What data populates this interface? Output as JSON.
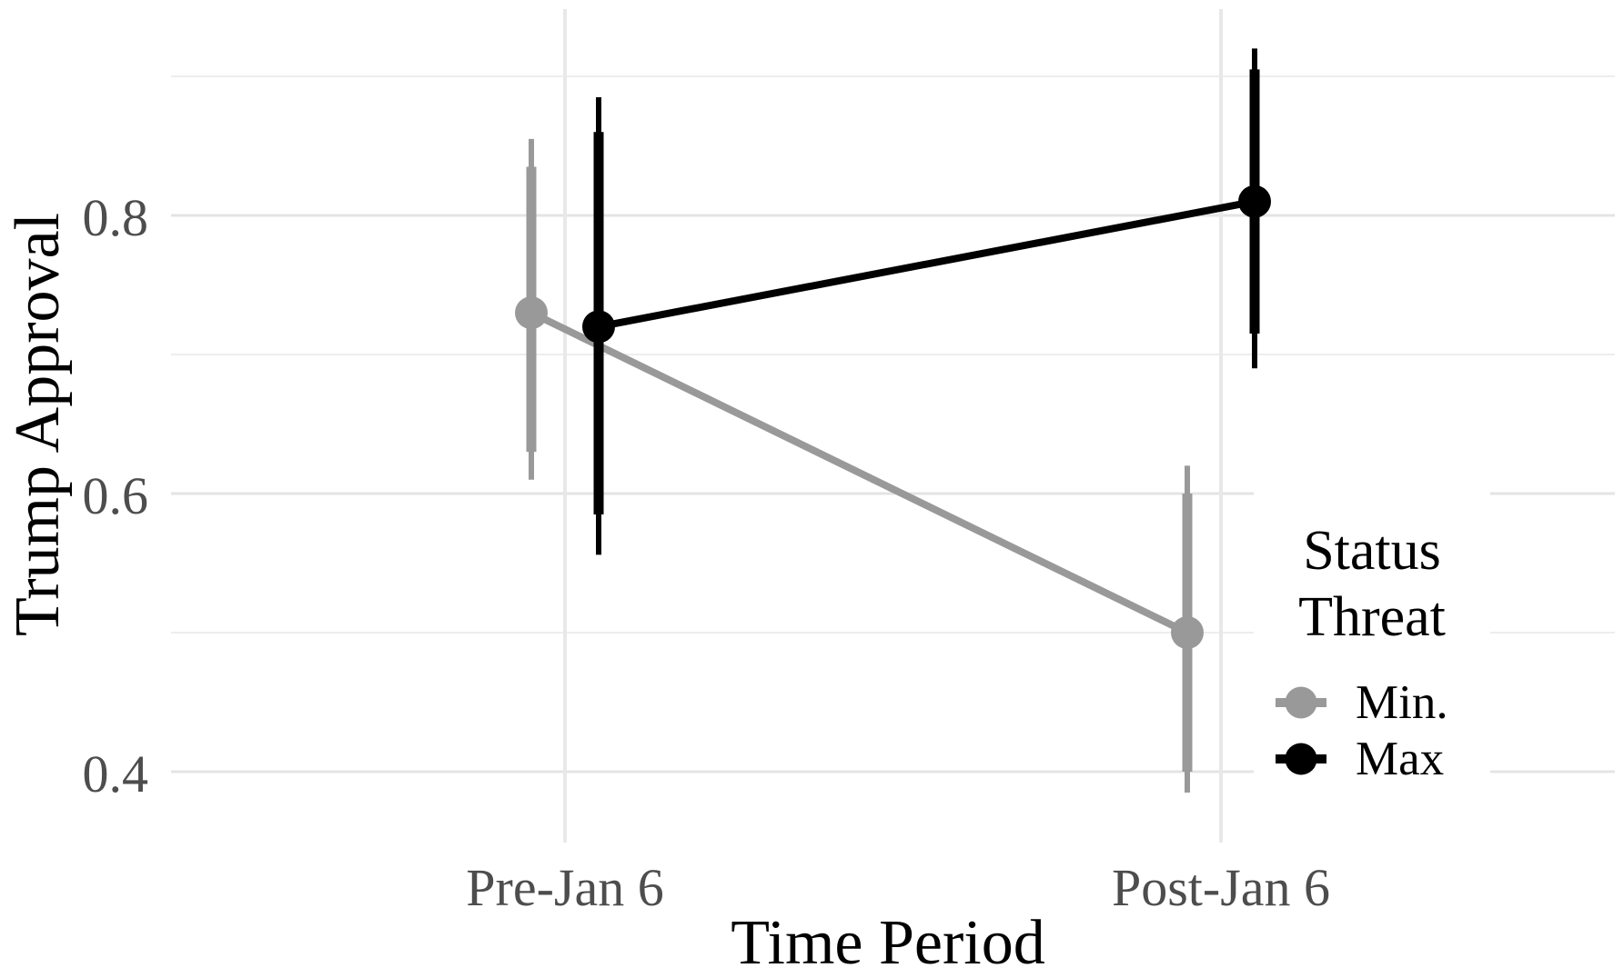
{
  "axes": {
    "y_title": "Trump Approval",
    "x_title": "Time Period",
    "y_tick_labels": [
      "0.8",
      "0.6",
      "0.4"
    ],
    "x_tick_labels": [
      "Pre-Jan 6",
      "Post-Jan 6"
    ],
    "tick_label_color": "#4d4d4d",
    "gridline_color": "#e4e4e4"
  },
  "legend": {
    "title_lines": [
      "Status",
      "Threat"
    ],
    "items": [
      {
        "label": "Min.",
        "color": "#999999"
      },
      {
        "label": "Max",
        "color": "#000000"
      }
    ]
  },
  "chart_data": {
    "type": "line",
    "title": "",
    "xlabel": "Time Period",
    "ylabel": "Trump Approval",
    "categories": [
      "Pre-Jan 6",
      "Post-Jan 6"
    ],
    "y_ticks": [
      0.4,
      0.6,
      0.8
    ],
    "y_minor_gridlines": [
      0.5,
      0.7,
      0.9
    ],
    "ylim": [
      0.35,
      0.95
    ],
    "grid": true,
    "legend_position": "inside-right",
    "marker": "point-with-interval-bars",
    "series": [
      {
        "name": "Min.",
        "color": "#999999",
        "means": [
          0.73,
          0.5
        ],
        "ci_inner": [
          [
            0.63,
            0.835
          ],
          [
            0.4,
            0.6
          ]
        ],
        "ci_outer": [
          [
            0.61,
            0.855
          ],
          [
            0.385,
            0.62
          ]
        ]
      },
      {
        "name": "Max",
        "color": "#000000",
        "means": [
          0.72,
          0.81
        ],
        "ci_inner": [
          [
            0.585,
            0.86
          ],
          [
            0.715,
            0.905
          ]
        ],
        "ci_outer": [
          [
            0.556,
            0.885
          ],
          [
            0.69,
            0.92
          ]
        ]
      }
    ]
  }
}
